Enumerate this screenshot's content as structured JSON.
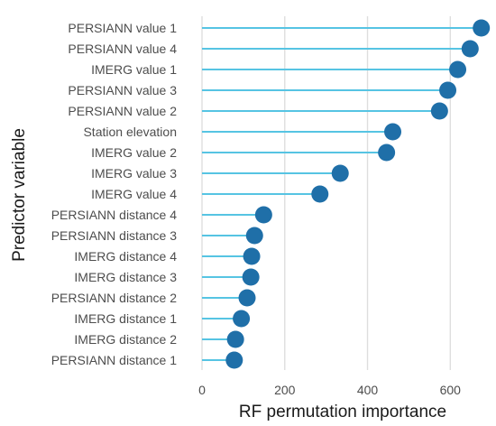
{
  "chart_data": {
    "type": "lollipop",
    "orientation": "horizontal",
    "xlabel": "RF permutation importance",
    "ylabel": "Predictor variable",
    "xlim": [
      0,
      680
    ],
    "xticks": [
      0,
      200,
      400,
      600
    ],
    "grid": true,
    "colors": {
      "stick": "#56c4e3",
      "dot": "#1f6fa8",
      "grid": "#dedede"
    },
    "categories": [
      "PERSIANN value 1",
      "PERSIANN value 4",
      "IMERG value 1",
      "PERSIANN value 3",
      "PERSIANN value 2",
      "Station elevation",
      "IMERG value 2",
      "IMERG value 3",
      "IMERG value 4",
      "PERSIANN distance 4",
      "PERSIANN distance 3",
      "IMERG distance 4",
      "IMERG distance 3",
      "PERSIANN distance 2",
      "IMERG distance 1",
      "IMERG distance 2",
      "PERSIANN distance 1"
    ],
    "values": [
      675,
      648,
      618,
      594,
      574,
      461,
      446,
      334,
      285,
      149,
      127,
      120,
      118,
      109,
      95,
      81,
      78
    ]
  }
}
